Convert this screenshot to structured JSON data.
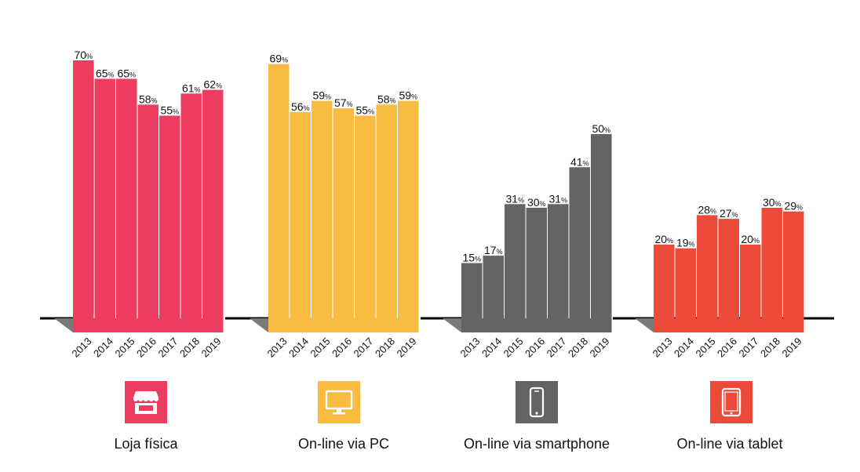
{
  "chart_data": {
    "type": "bar",
    "categories": [
      "2013",
      "2014",
      "2015",
      "2016",
      "2017",
      "2018",
      "2019"
    ],
    "value_suffix": "%",
    "groups": [
      {
        "name": "Loja física",
        "color": "#ec3c5f",
        "icon": "store-icon",
        "values": [
          70,
          65,
          65,
          58,
          55,
          61,
          62
        ]
      },
      {
        "name": "On-line via PC",
        "color": "#f9bc40",
        "icon": "desktop-monitor-icon",
        "values": [
          69,
          56,
          59,
          57,
          55,
          58,
          59
        ]
      },
      {
        "name": "On-line via smartphone",
        "color": "#646464",
        "icon": "smartphone-icon",
        "values": [
          15,
          17,
          31,
          30,
          31,
          41,
          50
        ]
      },
      {
        "name": "On-line via tablet",
        "color": "#ec4b3c",
        "icon": "tablet-icon",
        "values": [
          20,
          19,
          28,
          27,
          20,
          30,
          29
        ]
      }
    ],
    "ylim": [
      0,
      70
    ],
    "grid": false,
    "legend": "none"
  }
}
